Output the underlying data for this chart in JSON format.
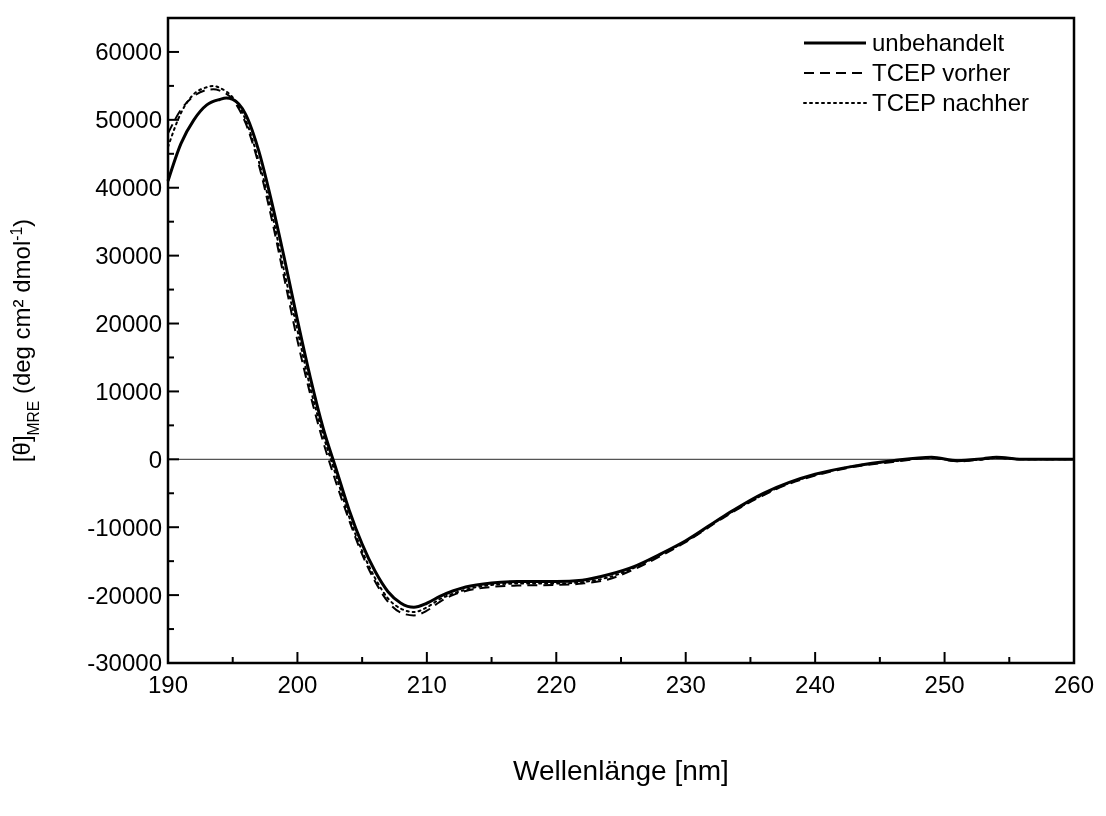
{
  "chart_data": {
    "type": "line",
    "xlabel": "Wellenlänge [nm]",
    "ylabel": "[θ]$_{MRE}$ (deg cm² dmol$^{-1}$)",
    "xlim": [
      190,
      260
    ],
    "ylim": [
      -30000,
      65000
    ],
    "xticks": [
      190,
      {
        "value": 195,
        "label": null
      },
      200,
      {
        "value": 205,
        "label": null
      },
      210,
      {
        "value": 215,
        "label": null
      },
      220,
      {
        "value": 225,
        "label": null
      },
      230,
      {
        "value": 235,
        "label": null
      },
      240,
      {
        "value": 245,
        "label": null
      },
      250,
      {
        "value": 255,
        "label": null
      },
      260
    ],
    "yticks": [
      -30000,
      {
        "value": -25000,
        "label": null
      },
      -20000,
      {
        "value": -15000,
        "label": null
      },
      -10000,
      {
        "value": -5000,
        "label": null
      },
      0,
      {
        "value": 5000,
        "label": null
      },
      10000,
      {
        "value": 15000,
        "label": null
      },
      20000,
      {
        "value": 25000,
        "label": null
      },
      30000,
      {
        "value": 35000,
        "label": null
      },
      40000,
      {
        "value": 45000,
        "label": null
      },
      50000,
      {
        "value": 55000,
        "label": null
      },
      60000
    ],
    "grid": false,
    "legend": "top right",
    "ref_lines": [
      {
        "axis": "y",
        "value": 0,
        "color": "#555555"
      }
    ],
    "series": [
      {
        "name": "unbehandelt",
        "color": "#000000",
        "line_style": "solid",
        "x": [
          190,
          191,
          192,
          193,
          194,
          194.5,
          195,
          196,
          197,
          198,
          199,
          200,
          201,
          202,
          203,
          204,
          205,
          206,
          207,
          208,
          209,
          210,
          211,
          212,
          213,
          215,
          217,
          220,
          222,
          224,
          226,
          228,
          230,
          233,
          236,
          238,
          240,
          243,
          246,
          249,
          251,
          253,
          254,
          256,
          258,
          260
        ],
        "values": [
          41000,
          46500,
          50000,
          52200,
          53000,
          53200,
          53000,
          50800,
          45500,
          38000,
          29500,
          20500,
          12000,
          4500,
          -1500,
          -7500,
          -12500,
          -16500,
          -19500,
          -21200,
          -21800,
          -21200,
          -20200,
          -19400,
          -18800,
          -18200,
          -18000,
          -18000,
          -17800,
          -17000,
          -15800,
          -14000,
          -12000,
          -8300,
          -5000,
          -3400,
          -2200,
          -1000,
          -200,
          300,
          -200,
          100,
          300,
          0,
          0,
          0
        ]
      },
      {
        "name": "TCEP vorher",
        "color": "#000000",
        "line_style": "dashed",
        "x": [
          190,
          191,
          192,
          193,
          193.5,
          194,
          195,
          196,
          197,
          198,
          199,
          200,
          201,
          202,
          203,
          204,
          205,
          206,
          207,
          208,
          209,
          210,
          211,
          212,
          213,
          215,
          217,
          220,
          222,
          224,
          226,
          228,
          230,
          233,
          236,
          238,
          240,
          243,
          246,
          249,
          251,
          253,
          254,
          256,
          258,
          260
        ],
        "values": [
          48000,
          51500,
          53500,
          54400,
          54500,
          54300,
          53000,
          49500,
          43500,
          35500,
          26500,
          17500,
          9500,
          2500,
          -3500,
          -9000,
          -14000,
          -18000,
          -21000,
          -22600,
          -23000,
          -22300,
          -21000,
          -20000,
          -19400,
          -18800,
          -18600,
          -18500,
          -18300,
          -17700,
          -16200,
          -14300,
          -12200,
          -8500,
          -5300,
          -3600,
          -2400,
          -1100,
          -400,
          200,
          -300,
          0,
          200,
          0,
          0,
          0
        ]
      },
      {
        "name": "TCEP nachher",
        "color": "#000000",
        "line_style": "dotted",
        "x": [
          190,
          191,
          192,
          193,
          193.5,
          194,
          195,
          196,
          197,
          198,
          199,
          200,
          201,
          202,
          203,
          204,
          205,
          206,
          207,
          208,
          209,
          210,
          211,
          212,
          213,
          215,
          217,
          220,
          222,
          224,
          226,
          228,
          230,
          233,
          236,
          238,
          240,
          243,
          246,
          249,
          251,
          253,
          254,
          256,
          258,
          260
        ],
        "values": [
          46000,
          51000,
          53800,
          54800,
          55000,
          54700,
          53300,
          50000,
          44000,
          36500,
          27500,
          19000,
          10500,
          3500,
          -2500,
          -8500,
          -13500,
          -17500,
          -20500,
          -22000,
          -22500,
          -21800,
          -20600,
          -19800,
          -19200,
          -18500,
          -18300,
          -18300,
          -18100,
          -17400,
          -16000,
          -14100,
          -12100,
          -8400,
          -5200,
          -3500,
          -2300,
          -1000,
          -300,
          200,
          -200,
          0,
          200,
          0,
          0,
          0
        ]
      }
    ]
  }
}
